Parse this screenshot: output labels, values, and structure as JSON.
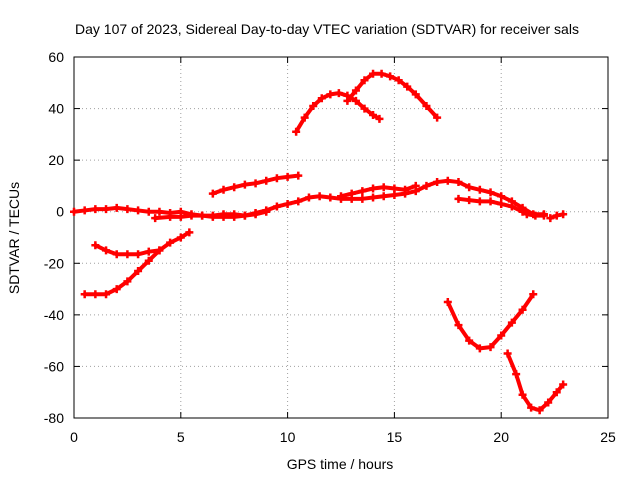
{
  "chart_data": {
    "type": "scatter",
    "title": "Day 107 of 2023, Sidereal Day-to-day VTEC variation (SDTVAR) for receiver sals",
    "xlabel": "GPS time / hours",
    "ylabel": "SDTVAR / TECUs",
    "xlim": [
      0,
      25
    ],
    "ylim": [
      -80,
      60
    ],
    "x_ticks": [
      "0",
      "5",
      "10",
      "15",
      "20",
      "25"
    ],
    "y_ticks": [
      "60",
      "40",
      "20",
      "0",
      "-20",
      "-40",
      "-60",
      "-80"
    ],
    "grid": true,
    "legend": "none",
    "marker_color": "#ff0000",
    "series": [
      {
        "x": [
          0.0,
          0.5,
          1.0,
          1.5,
          2.0,
          2.5,
          3.0,
          3.5,
          4.0,
          4.5,
          5.0,
          5.5,
          6.0,
          6.5,
          7.0,
          7.5,
          8.0,
          8.5,
          9.0,
          9.5,
          10.0,
          10.5,
          11.0,
          11.5,
          12.0,
          12.5,
          13.0,
          13.5,
          14.0,
          14.5,
          15.0,
          15.5,
          16.0,
          16.5,
          17.0,
          17.5,
          18.0,
          18.5,
          19.0,
          19.5,
          20.0,
          20.5,
          21.0,
          21.5,
          22.0
        ],
        "y": [
          0,
          0.5,
          1,
          1,
          1.5,
          1,
          0.5,
          0,
          0,
          -0.5,
          0,
          -1,
          -1.5,
          -1.5,
          -1,
          -1,
          -1.5,
          -0.5,
          0.5,
          2,
          3,
          4,
          5.5,
          6,
          5.5,
          5,
          5,
          5,
          5.5,
          6,
          6.5,
          7,
          8,
          10,
          11.5,
          12,
          11.5,
          9.5,
          8.5,
          7.5,
          6,
          4,
          1.5,
          -1,
          -1
        ]
      },
      {
        "x": [
          3.8,
          4.5,
          5.0,
          5.5,
          6.0,
          6.5,
          7.0,
          7.5,
          8.0,
          8.5,
          9.0
        ],
        "y": [
          -2.5,
          -2,
          -2,
          -1.5,
          -1.5,
          -2,
          -2,
          -2,
          -1.5,
          -1,
          0
        ]
      },
      {
        "x": [
          6.5,
          7.0,
          7.5,
          8.0,
          8.5,
          9.0,
          9.5,
          10.0,
          10.5
        ],
        "y": [
          7,
          8.5,
          9.5,
          10.5,
          11,
          12,
          13,
          13.5,
          14
        ]
      },
      {
        "x": [
          12.5,
          13.0,
          13.5,
          14.0,
          14.5,
          15.0,
          15.5,
          16.0
        ],
        "y": [
          6,
          7,
          8,
          9,
          9.5,
          9,
          8.5,
          10
        ]
      },
      {
        "x": [
          18.0,
          18.5,
          19.0,
          19.5,
          20.0,
          20.5,
          21.0
        ],
        "y": [
          5,
          4.5,
          4,
          4,
          3,
          2,
          0
        ]
      },
      {
        "x": [
          21.2,
          21.6,
          22.0
        ],
        "y": [
          -1,
          -1.5,
          -1.5
        ]
      },
      {
        "x": [
          22.3,
          22.6,
          22.9
        ],
        "y": [
          -2.5,
          -1.5,
          -1
        ]
      },
      {
        "x": [
          1.0,
          1.5,
          2.0,
          2.5,
          3.0,
          3.5,
          4.0
        ],
        "y": [
          -13,
          -15,
          -16.5,
          -16.5,
          -16.5,
          -15.5,
          -15
        ]
      },
      {
        "x": [
          0.5,
          1.0,
          1.5,
          2.0,
          2.5,
          3.0,
          3.5,
          4.0,
          4.5,
          5.0,
          5.4
        ],
        "y": [
          -32,
          -32,
          -32,
          -30,
          -27,
          -23,
          -19,
          -15,
          -12,
          -10,
          -8
        ]
      },
      {
        "x": [
          10.4,
          10.8,
          11.2,
          11.6,
          12.0,
          12.4,
          12.8,
          13.2,
          13.6,
          14.0,
          14.3
        ],
        "y": [
          31,
          36.5,
          41,
          44,
          45.5,
          46,
          45,
          43,
          40,
          37.5,
          36
        ]
      },
      {
        "x": [
          12.8,
          13.2,
          13.6,
          14.0,
          14.4,
          14.8,
          15.2,
          15.6,
          16.0,
          16.5,
          17.0
        ],
        "y": [
          43,
          47,
          51,
          53.5,
          53.5,
          52.5,
          51,
          48.5,
          45.5,
          41,
          36.5
        ]
      },
      {
        "x": [
          17.5,
          18.0,
          18.5,
          19.0,
          19.5,
          20.0,
          20.5,
          21.0,
          21.5
        ],
        "y": [
          -35,
          -44,
          -50,
          -53,
          -52.5,
          -48,
          -43,
          -38,
          -32
        ]
      },
      {
        "x": [
          20.3,
          20.7,
          21.0,
          21.4,
          21.8,
          22.2,
          22.6,
          22.9
        ],
        "y": [
          -55,
          -63,
          -71,
          -76,
          -77,
          -74,
          -70,
          -67
        ]
      }
    ]
  }
}
